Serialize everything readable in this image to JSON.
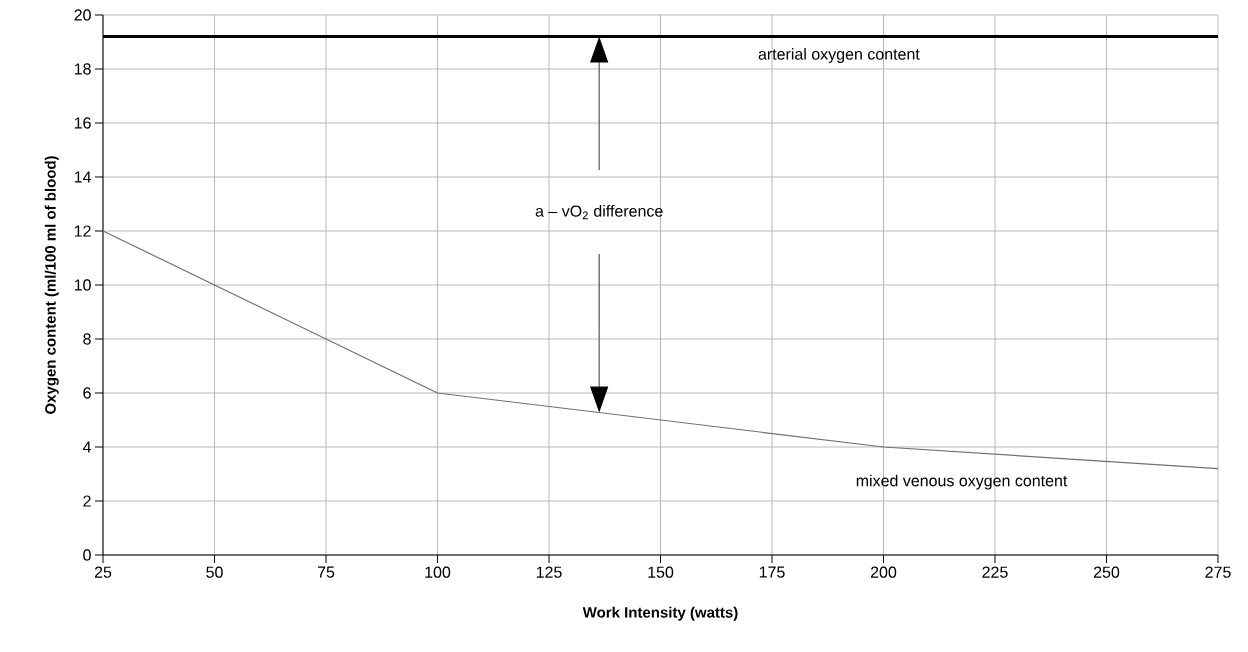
{
  "chart_data": {
    "type": "line",
    "xlabel": "Work Intensity (watts)",
    "ylabel": "Oxygen content (ml/100 ml of blood)",
    "series": [
      {
        "name": "arterial oxygen content",
        "color": "#000000",
        "x": [
          25,
          275
        ],
        "values": [
          19.2,
          19.2
        ]
      },
      {
        "name": "mixed venous oxygen content",
        "color": "#707070",
        "x": [
          25,
          100,
          200,
          275
        ],
        "values": [
          12,
          6,
          4,
          3.2
        ]
      }
    ],
    "annotations": [
      "a – vO$_{2}$ difference"
    ],
    "xlim": [
      25,
      275
    ],
    "ylim": [
      0,
      20
    ],
    "xticks": [
      25,
      50,
      75,
      100,
      125,
      150,
      175,
      200,
      225,
      250,
      275
    ],
    "yticks": [
      0,
      2,
      4,
      6,
      8,
      10,
      12,
      14,
      16,
      18,
      20
    ],
    "grid": true,
    "legend": false,
    "marker": "none",
    "line_style": "solid"
  }
}
